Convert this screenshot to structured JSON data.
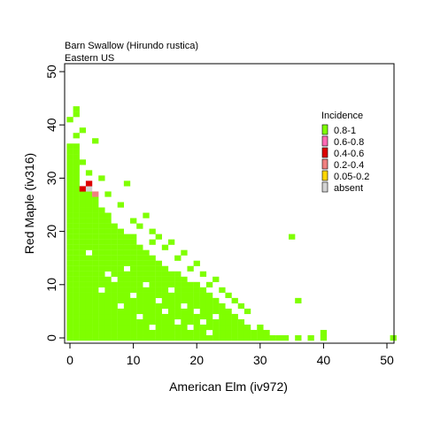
{
  "chart_data": {
    "type": "heatmap",
    "title": "Barn Swallow  (Hirundo rustica)",
    "subtitle": "Eastern US",
    "xlabel": "American Elm (iv972)",
    "ylabel": "Red Maple (iv316)",
    "xlim": [
      -1,
      51
    ],
    "ylim": [
      -1,
      51
    ],
    "xticks": [
      0,
      10,
      20,
      30,
      40,
      50
    ],
    "yticks": [
      0,
      10,
      20,
      30,
      40,
      50
    ],
    "grid": false,
    "legend": {
      "title": "Incidence",
      "placement": "top-right",
      "entries": [
        {
          "label": "0.8-1",
          "color": "#7fff00"
        },
        {
          "label": "0.6-0.8",
          "color": "#ff69b4"
        },
        {
          "label": "0.4-0.6",
          "color": "#dd0000"
        },
        {
          "label": "0.2-0.4",
          "color": "#f08080"
        },
        {
          "label": "0.05-0.2",
          "color": "#ffd700"
        },
        {
          "label": "absent",
          "color": "#d3d3d3"
        }
      ]
    },
    "colors": {
      "high": "#7fff00",
      "mid_high": "#ff69b4",
      "mid": "#dd0000",
      "low_mid": "#f08080",
      "low": "#ffd700",
      "absent": "#d3d3d3"
    },
    "column_max_y": [
      [
        0,
        36
      ],
      [
        1,
        36
      ],
      [
        2,
        28
      ],
      [
        3,
        29
      ],
      [
        4,
        26
      ],
      [
        5,
        24
      ],
      [
        6,
        23
      ],
      [
        7,
        21
      ],
      [
        8,
        20
      ],
      [
        9,
        19
      ],
      [
        10,
        19
      ],
      [
        11,
        17
      ],
      [
        12,
        16
      ],
      [
        13,
        15
      ],
      [
        14,
        14
      ],
      [
        15,
        13
      ],
      [
        16,
        12
      ],
      [
        17,
        12
      ],
      [
        18,
        11
      ],
      [
        19,
        10
      ],
      [
        20,
        10
      ],
      [
        21,
        9
      ],
      [
        22,
        8
      ],
      [
        23,
        7
      ],
      [
        24,
        6
      ],
      [
        25,
        5
      ],
      [
        26,
        4
      ],
      [
        27,
        3
      ],
      [
        28,
        2
      ],
      [
        29,
        1
      ],
      [
        30,
        1
      ],
      [
        31,
        1
      ],
      [
        32,
        0
      ]
    ],
    "extra_cells": [
      [
        0,
        41
      ],
      [
        0,
        35
      ],
      [
        1,
        43
      ],
      [
        1,
        42
      ],
      [
        1,
        38
      ],
      [
        2,
        39
      ],
      [
        2,
        33
      ],
      [
        3,
        31
      ],
      [
        4,
        37
      ],
      [
        5,
        30
      ],
      [
        6,
        27
      ],
      [
        8,
        25
      ],
      [
        9,
        29
      ],
      [
        10,
        22
      ],
      [
        11,
        21
      ],
      [
        12,
        23
      ],
      [
        13,
        20
      ],
      [
        13,
        18
      ],
      [
        14,
        19
      ],
      [
        15,
        17
      ],
      [
        16,
        18
      ],
      [
        17,
        15
      ],
      [
        18,
        16
      ],
      [
        19,
        13
      ],
      [
        20,
        14
      ],
      [
        21,
        12
      ],
      [
        22,
        10
      ],
      [
        23,
        11
      ],
      [
        24,
        9
      ],
      [
        25,
        8
      ],
      [
        26,
        7
      ],
      [
        27,
        6
      ],
      [
        28,
        5
      ],
      [
        30,
        2
      ],
      [
        33,
        0
      ],
      [
        34,
        0
      ],
      [
        35,
        19
      ],
      [
        36,
        7
      ],
      [
        36,
        0
      ],
      [
        38,
        0
      ],
      [
        40,
        1
      ],
      [
        40,
        0
      ],
      [
        51,
        0
      ]
    ],
    "empty_cells": [
      [
        3,
        16
      ],
      [
        6,
        12
      ],
      [
        5,
        9
      ],
      [
        7,
        11
      ],
      [
        9,
        13
      ],
      [
        10,
        8
      ],
      [
        12,
        10
      ],
      [
        14,
        7
      ],
      [
        15,
        5
      ],
      [
        16,
        9
      ],
      [
        17,
        3
      ],
      [
        18,
        6
      ],
      [
        19,
        2
      ],
      [
        20,
        5
      ],
      [
        21,
        3
      ],
      [
        22,
        1
      ],
      [
        23,
        4
      ],
      [
        8,
        6
      ],
      [
        11,
        4
      ],
      [
        13,
        2
      ]
    ],
    "special_cells": [
      {
        "x": 3,
        "y": 29,
        "class": "mid"
      },
      {
        "x": 2,
        "y": 28,
        "class": "mid"
      },
      {
        "x": 4,
        "y": 27,
        "class": "low_mid"
      },
      {
        "x": 3,
        "y": 28,
        "class": "absent"
      }
    ]
  }
}
